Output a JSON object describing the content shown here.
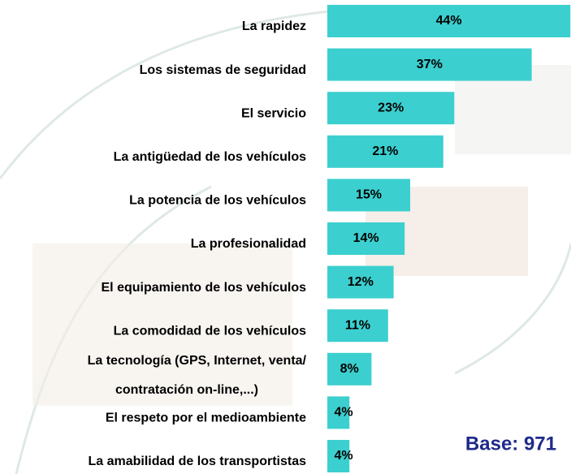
{
  "chart_data": {
    "type": "bar",
    "orientation": "horizontal",
    "categories": [
      "La rapidez",
      "Los sistemas de seguridad",
      "El servicio",
      "La antigüedad de los vehículos",
      "La potencia de los vehículos",
      "La profesionalidad",
      "El equipamiento de los vehículos",
      "La comodidad de los vehículos",
      "La tecnología (GPS, Internet, venta/\ncontratación on-line,...)",
      "El respeto por el medioambiente",
      "La amabilidad de los transportistas"
    ],
    "values": [
      44,
      37,
      23,
      21,
      15,
      14,
      12,
      11,
      8,
      4,
      4
    ],
    "value_labels": [
      "44%",
      "37%",
      "23%",
      "21%",
      "15%",
      "14%",
      "12%",
      "11%",
      "8%",
      "4%",
      "4%"
    ],
    "color": "#3ccfcf",
    "annotation": "Base: 971"
  }
}
